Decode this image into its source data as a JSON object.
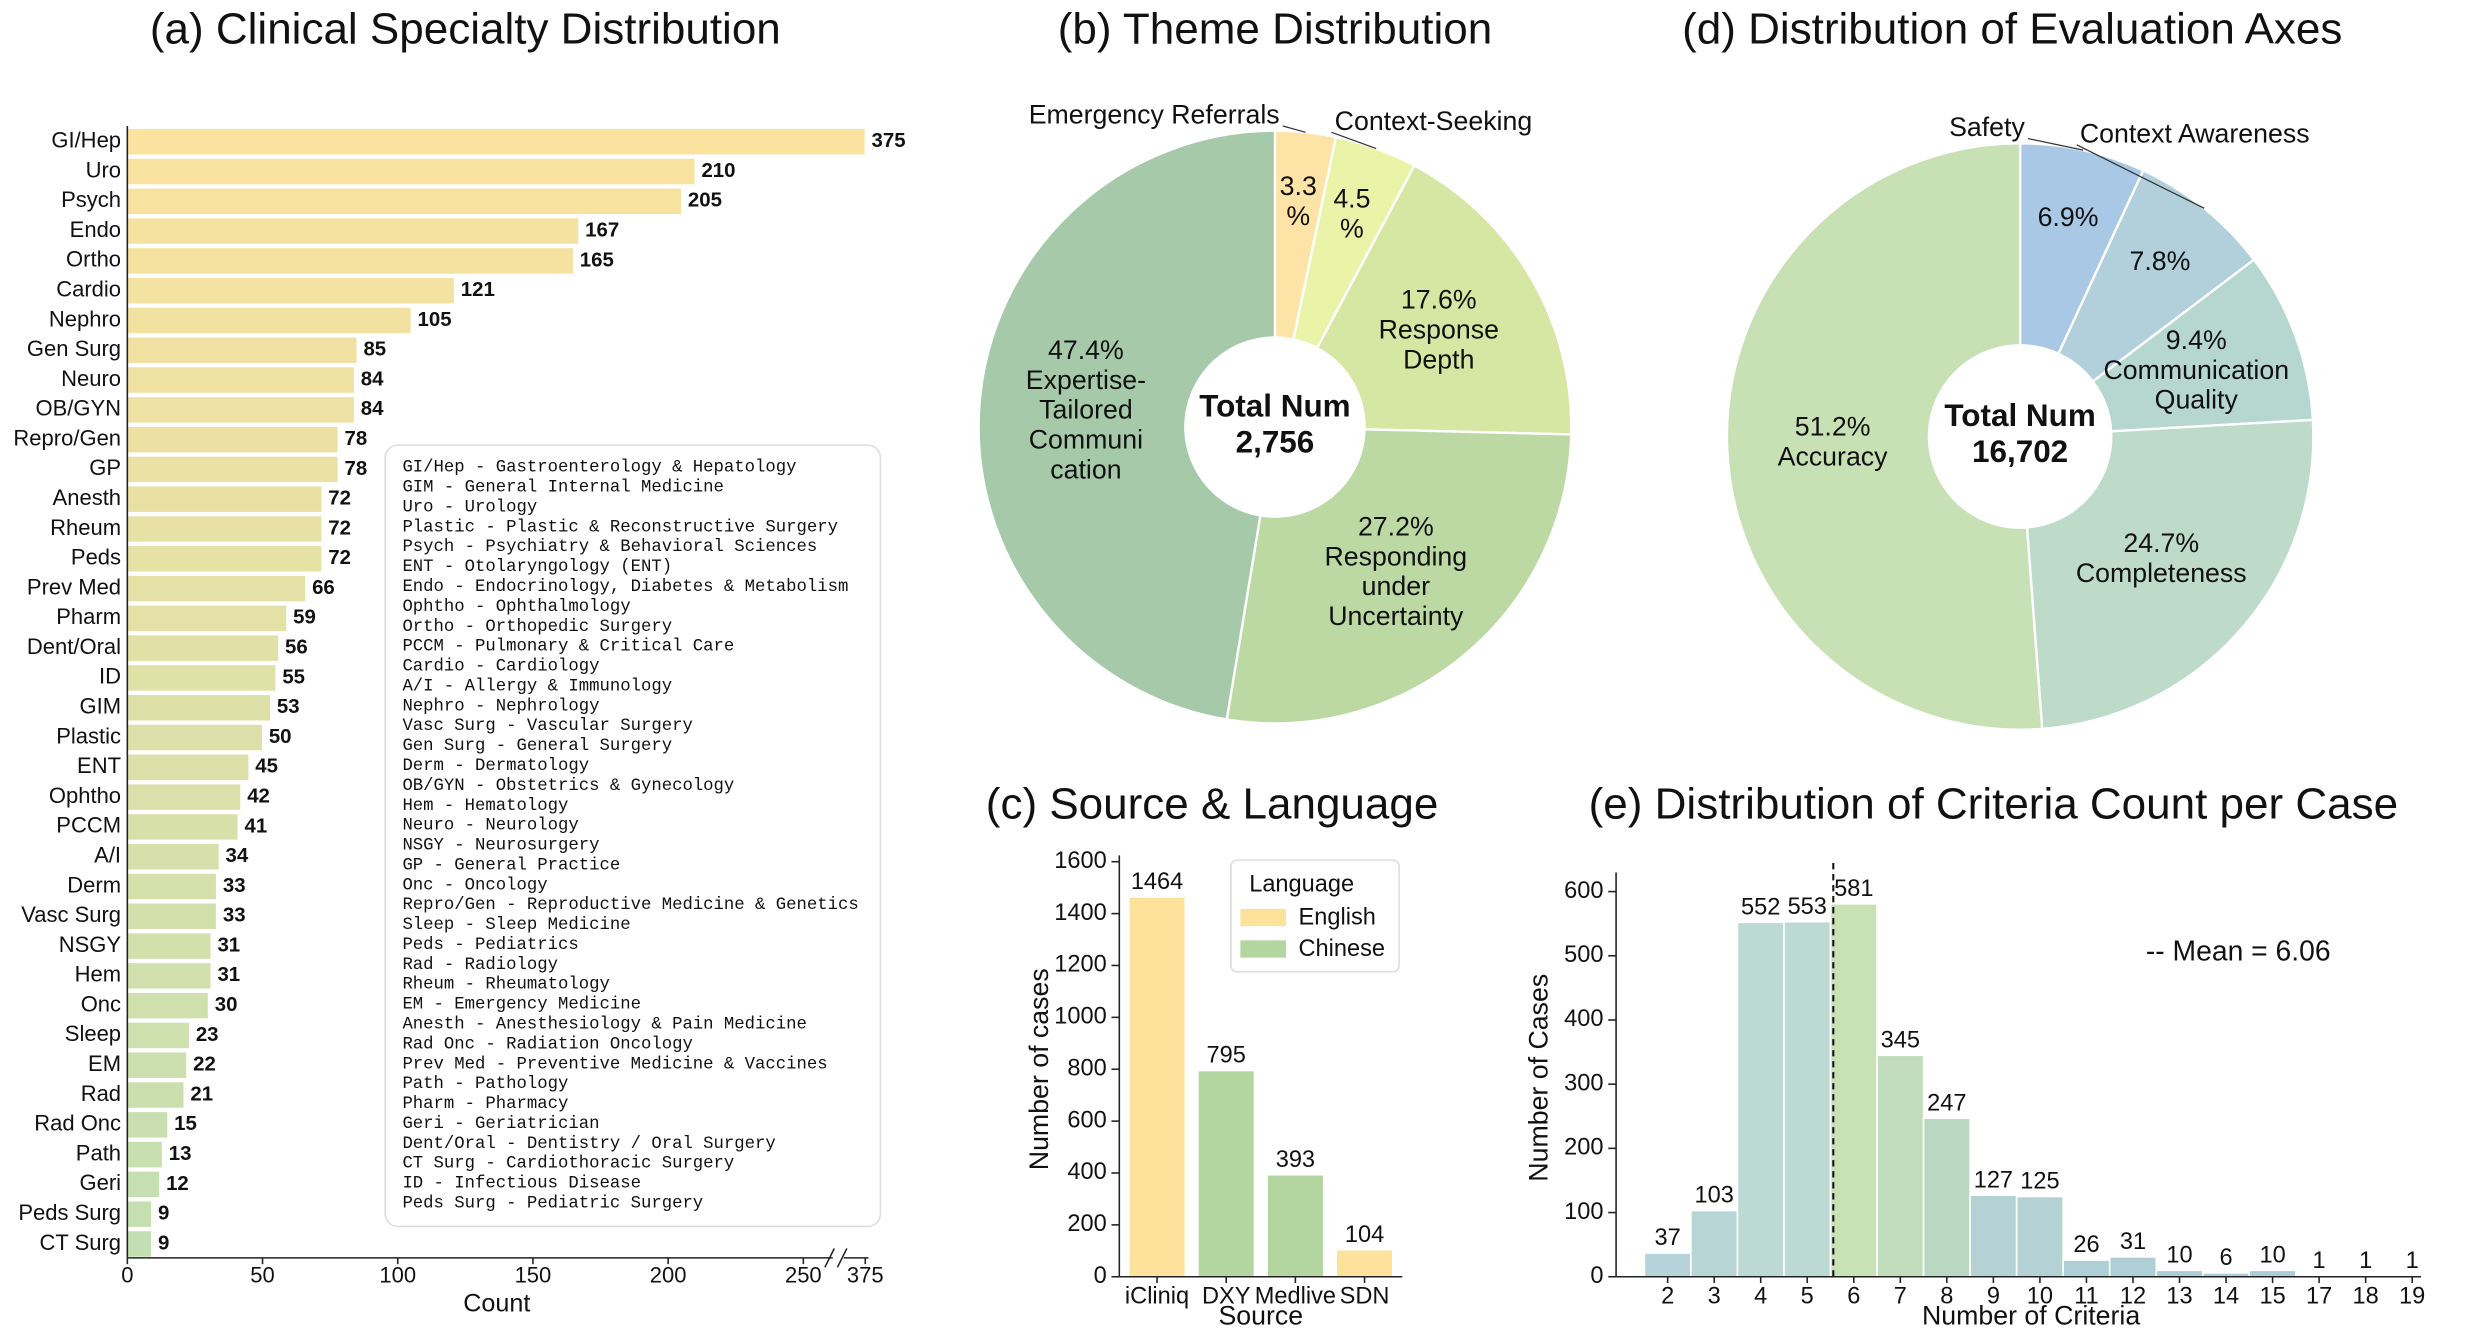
{
  "chart_data": [
    {
      "type": "hbar",
      "title": "(a) Clinical Specialty Distribution",
      "xlabel": "Count",
      "categories": [
        "GI/Hep",
        "Uro",
        "Psych",
        "Endo",
        "Ortho",
        "Cardio",
        "Nephro",
        "Gen Surg",
        "Neuro",
        "OB/GYN",
        "Repro/Gen",
        "GP",
        "Anesth",
        "Rheum",
        "Peds",
        "Prev Med",
        "Pharm",
        "Dent/Oral",
        "ID",
        "GIM",
        "Plastic",
        "ENT",
        "Ophtho",
        "PCCM",
        "A/I",
        "Derm",
        "Vasc Surg",
        "NSGY",
        "Hem",
        "Onc",
        "Sleep",
        "EM",
        "Rad",
        "Rad Onc",
        "Path",
        "Geri",
        "Peds Surg",
        "CT Surg"
      ],
      "values": [
        375,
        210,
        205,
        167,
        165,
        121,
        105,
        85,
        84,
        84,
        78,
        78,
        72,
        72,
        72,
        66,
        59,
        56,
        55,
        53,
        50,
        45,
        42,
        41,
        34,
        33,
        33,
        31,
        31,
        30,
        23,
        22,
        21,
        15,
        13,
        12,
        9,
        9
      ],
      "color_range": [
        "#fbe29e",
        "#c3dfb1"
      ],
      "xlim": [
        0,
        375
      ],
      "xbreak": [
        260,
        365
      ],
      "xticks": [
        0,
        50,
        100,
        150,
        200,
        250,
        375
      ],
      "legend_text": [
        "GI/Hep - Gastroenterology & Hepatology",
        "GIM - General Internal Medicine",
        "Uro - Urology",
        "Plastic - Plastic & Reconstructive Surgery",
        "Psych - Psychiatry & Behavioral Sciences",
        "ENT - Otolaryngology (ENT)",
        "Endo - Endocrinology, Diabetes & Metabolism",
        "Ophtho - Ophthalmology",
        "Ortho - Orthopedic Surgery",
        "PCCM - Pulmonary & Critical Care",
        "Cardio - Cardiology",
        "A/I - Allergy & Immunology",
        "Nephro - Nephrology",
        "Vasc Surg - Vascular Surgery",
        "Gen Surg - General Surgery",
        "Derm - Dermatology",
        "OB/GYN - Obstetrics & Gynecology",
        "Hem - Hematology",
        "Neuro - Neurology",
        "NSGY - Neurosurgery",
        "GP - General Practice",
        "Onc - Oncology",
        "Repro/Gen - Reproductive Medicine & Genetics",
        "Sleep - Sleep Medicine",
        "Peds - Pediatrics",
        "Rad - Radiology",
        "Rheum - Rheumatology",
        "EM - Emergency Medicine",
        "Anesth - Anesthesiology & Pain Medicine",
        "Rad Onc - Radiation Oncology",
        "Prev Med - Preventive Medicine & Vaccines",
        "Path - Pathology",
        "Pharm - Pharmacy",
        "Geri - Geriatrician",
        "Dent/Oral - Dentistry / Oral Surgery",
        "CT Surg - Cardiothoracic Surgery",
        "ID - Infectious Disease",
        "Peds Surg - Pediatric Surgery"
      ]
    },
    {
      "type": "donut",
      "title": "(b) Theme Distribution",
      "center_text": [
        "Total Num",
        "2,756"
      ],
      "categories": [
        [
          "Emergency Referrals"
        ],
        [
          "Context-Seeking"
        ],
        [
          "Response",
          "Depth"
        ],
        [
          "Responding",
          "under",
          "Uncertainty"
        ],
        [
          "Expertise-",
          "Tailored",
          "Communi",
          "cation"
        ]
      ],
      "values": [
        3.3,
        4.5,
        17.6,
        27.2,
        47.4
      ],
      "value_labels": [
        [
          "3.3",
          "%"
        ],
        [
          "4.5",
          "%"
        ],
        [
          "17.6%"
        ],
        [
          "27.2%"
        ],
        [
          "47.4%"
        ]
      ],
      "colors": [
        "#fde3a5",
        "#eaf4a9",
        "#d5e7a2",
        "#bcd9a4",
        "#a6caa9"
      ]
    },
    {
      "type": "bar",
      "title": "(c) Source & Language",
      "xlabel": "Source",
      "ylabel": "Number of cases",
      "categories": [
        "iCliniq",
        "DXY",
        "Medlive",
        "SDN"
      ],
      "series": [
        {
          "name": "English",
          "color": "#fde29c",
          "values": [
            1464,
            null,
            null,
            104
          ]
        },
        {
          "name": "Chinese",
          "color": "#b3d6a0",
          "values": [
            null,
            795,
            393,
            null
          ]
        }
      ],
      "legend_title": "Language",
      "legend": "upper right",
      "ylim": [
        0,
        1600
      ],
      "yticks": [
        0,
        200,
        400,
        600,
        800,
        1000,
        1200,
        1400,
        1600
      ]
    },
    {
      "type": "donut",
      "title": "(d) Distribution of Evaluation Axes",
      "center_text": [
        "Total Num",
        "16,702"
      ],
      "categories": [
        [
          "Safety"
        ],
        [
          "Context Awareness"
        ],
        [
          "Communication",
          "Quality"
        ],
        [
          "Completeness"
        ],
        [
          "Accuracy"
        ]
      ],
      "values": [
        6.9,
        7.8,
        9.4,
        24.7,
        51.2
      ],
      "value_labels": [
        [
          "6.9%"
        ],
        [
          "7.8%"
        ],
        [
          "9.4%"
        ],
        [
          "24.7%"
        ],
        [
          "51.2%"
        ]
      ],
      "colors": [
        "#a9c8e6",
        "#b2d0dc",
        "#b6d6d0",
        "#bddbc8",
        "#c7e1b5"
      ]
    },
    {
      "type": "bar",
      "title": "(e) Distribution of Criteria Count per Case",
      "xlabel": "Number of Criteria",
      "ylabel": "Number of Cases",
      "categories": [
        "2",
        "3",
        "4",
        "5",
        "6",
        "7",
        "8",
        "9",
        "10",
        "11",
        "12",
        "13",
        "14",
        "15",
        "17",
        "18",
        "19"
      ],
      "values": [
        37,
        103,
        552,
        553,
        581,
        345,
        247,
        127,
        125,
        26,
        31,
        10,
        6,
        10,
        1,
        1,
        1
      ],
      "colors": [
        "#b6d3d9",
        "#b8d5d6",
        "#bcd9d4",
        "#bcd9d4",
        "#c8e2b5",
        "#c1ddbb",
        "#bad8c1",
        "#b4d2d4",
        "#b4d2d4",
        "#aecfd6",
        "#aecfd6",
        "#abcdd8",
        "#abcdd8",
        "#abcdd8",
        "#a9ccd8",
        "#a9ccd8",
        "#a9ccd8"
      ],
      "ylim": [
        0,
        620
      ],
      "yticks": [
        0,
        100,
        200,
        300,
        400,
        500,
        600
      ],
      "mean": 6.06,
      "mean_label": "-- Mean = 6.06"
    }
  ]
}
